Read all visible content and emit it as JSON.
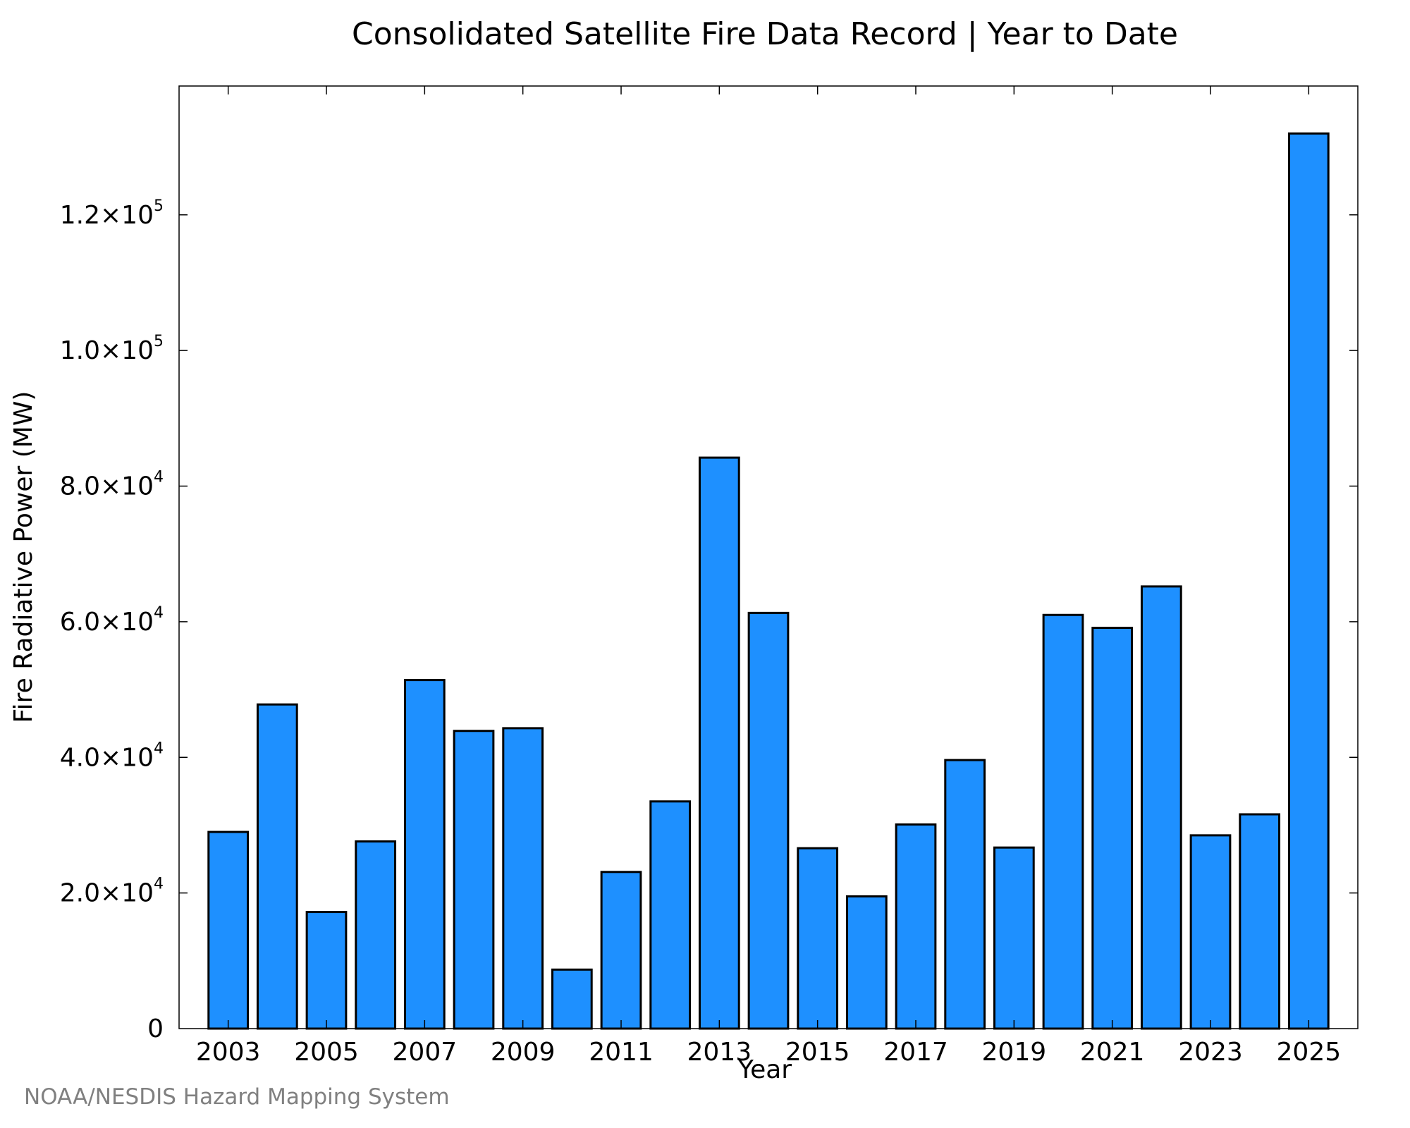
{
  "chart_data": {
    "type": "bar",
    "title": "Consolidated Satellite Fire Data Record | Year to Date",
    "xlabel": "Year",
    "ylabel": "Fire Radiative Power (MW)",
    "categories": [
      "2003",
      "2004",
      "2005",
      "2006",
      "2007",
      "2008",
      "2009",
      "2010",
      "2011",
      "2012",
      "2013",
      "2014",
      "2015",
      "2016",
      "2017",
      "2018",
      "2019",
      "2020",
      "2021",
      "2022",
      "2023",
      "2024",
      "2025"
    ],
    "values": [
      29000,
      47800,
      17200,
      27600,
      51400,
      43900,
      44300,
      8700,
      23100,
      33500,
      84200,
      61300,
      26600,
      19500,
      30100,
      39600,
      26700,
      61000,
      59100,
      65200,
      28500,
      31600,
      132000
    ],
    "ylim": [
      0,
      139000
    ],
    "xlim": [
      2002.0,
      2026.0
    ],
    "x_tick_labels": [
      "2003",
      "2005",
      "2007",
      "2009",
      "2011",
      "2013",
      "2015",
      "2017",
      "2019",
      "2021",
      "2023",
      "2025"
    ],
    "y_ticks": [
      {
        "value": 0,
        "mantissa": "0",
        "exponent": ""
      },
      {
        "value": 20000,
        "mantissa": "2.0×10",
        "exponent": "4"
      },
      {
        "value": 40000,
        "mantissa": "4.0×10",
        "exponent": "4"
      },
      {
        "value": 60000,
        "mantissa": "6.0×10",
        "exponent": "4"
      },
      {
        "value": 80000,
        "mantissa": "8.0×10",
        "exponent": "4"
      },
      {
        "value": 100000,
        "mantissa": "1.0×10",
        "exponent": "5"
      },
      {
        "value": 120000,
        "mantissa": "1.2×10",
        "exponent": "5"
      }
    ],
    "bar_color": "#1e90ff",
    "bar_edge_color": "#000000",
    "grid": false,
    "legend": "none"
  },
  "credit": "NOAA/NESDIS Hazard Mapping System"
}
